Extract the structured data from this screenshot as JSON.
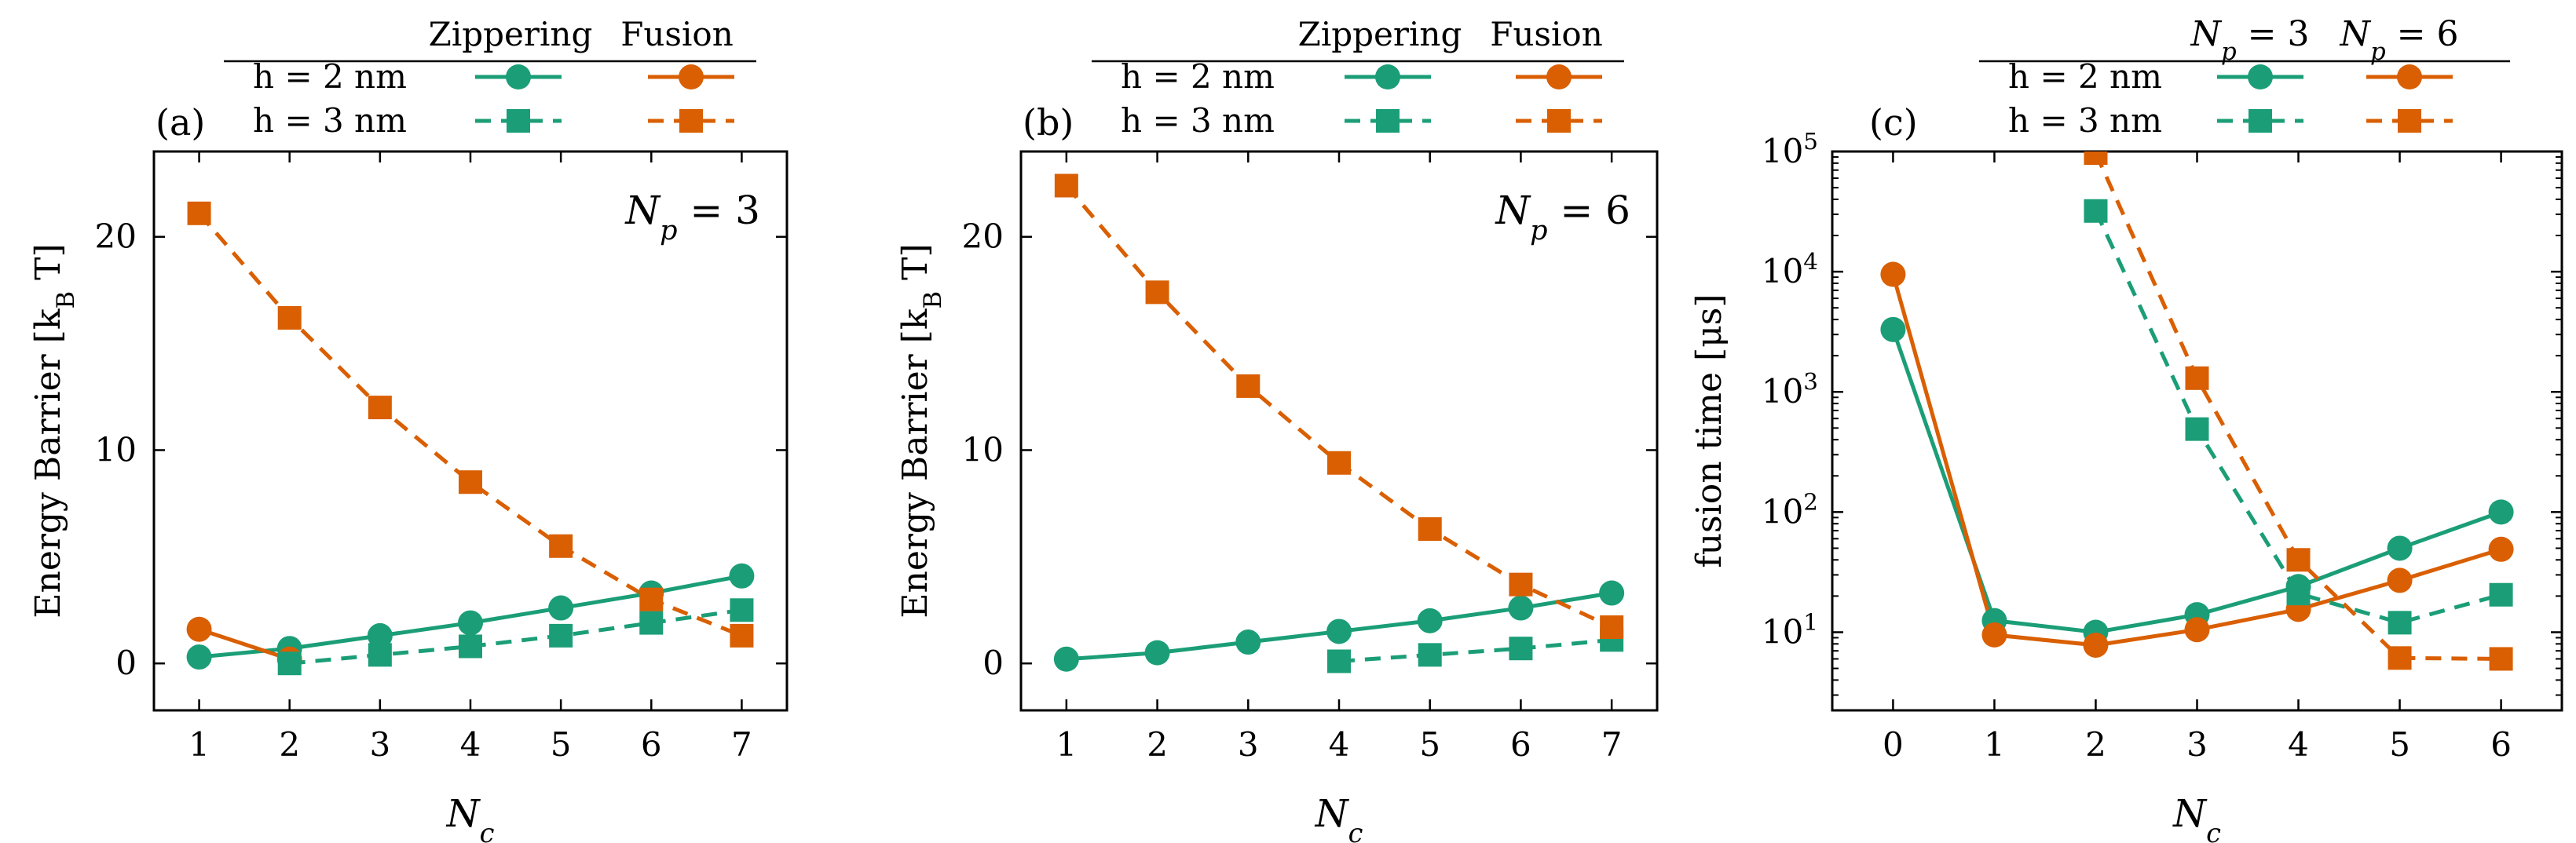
{
  "colors": {
    "green": "#1b9e77",
    "orange": "#d95f02"
  },
  "chart_data": [
    {
      "id": "a",
      "type": "line",
      "panel_label": "(a)",
      "annotation": "N_p = 3",
      "xlabel": "N_c",
      "ylabel": "Energy Barrier [k_B T]",
      "x_ticks": [
        1,
        2,
        3,
        4,
        5,
        6,
        7
      ],
      "y_ticks": [
        0,
        10,
        20
      ],
      "xlim": [
        0.5,
        7.5
      ],
      "ylim": [
        -2.2,
        24
      ],
      "yscale": "linear",
      "legend": {
        "col_headers": [
          "Zippering",
          "Fusion"
        ],
        "row_labels": [
          "h = 2 nm",
          "h = 3 nm"
        ]
      },
      "series": [
        {
          "name": "Zippering, h = 2 nm",
          "color": "green",
          "style": "solid",
          "marker": "circle",
          "points": [
            [
              1,
              0.3
            ],
            [
              2,
              0.7
            ],
            [
              3,
              1.3
            ],
            [
              4,
              1.9
            ],
            [
              5,
              2.6
            ],
            [
              6,
              3.3
            ],
            [
              7,
              4.1
            ]
          ]
        },
        {
          "name": "Fusion, h = 2 nm",
          "color": "orange",
          "style": "solid",
          "marker": "circle",
          "points": [
            [
              1,
              1.6
            ],
            [
              2,
              0.2
            ]
          ]
        },
        {
          "name": "Zippering, h = 3 nm",
          "color": "green",
          "style": "dashed",
          "marker": "square",
          "points": [
            [
              2,
              0.0
            ],
            [
              3,
              0.4
            ],
            [
              4,
              0.8
            ],
            [
              5,
              1.3
            ],
            [
              6,
              1.9
            ],
            [
              7,
              2.5
            ]
          ]
        },
        {
          "name": "Fusion, h = 3 nm",
          "color": "orange",
          "style": "dashed",
          "marker": "square",
          "points": [
            [
              1,
              21.1
            ],
            [
              2,
              16.2
            ],
            [
              3,
              12.0
            ],
            [
              4,
              8.5
            ],
            [
              5,
              5.5
            ],
            [
              6,
              3.0
            ],
            [
              7,
              1.3
            ]
          ]
        }
      ]
    },
    {
      "id": "b",
      "type": "line",
      "panel_label": "(b)",
      "annotation": "N_p = 6",
      "xlabel": "N_c",
      "ylabel": "Energy Barrier [k_B T]",
      "x_ticks": [
        1,
        2,
        3,
        4,
        5,
        6,
        7
      ],
      "y_ticks": [
        0,
        10,
        20
      ],
      "xlim": [
        0.5,
        7.5
      ],
      "ylim": [
        -2.2,
        24
      ],
      "yscale": "linear",
      "legend": {
        "col_headers": [
          "Zippering",
          "Fusion"
        ],
        "row_labels": [
          "h = 2 nm",
          "h = 3 nm"
        ]
      },
      "series": [
        {
          "name": "Zippering, h = 2 nm",
          "color": "green",
          "style": "solid",
          "marker": "circle",
          "points": [
            [
              1,
              0.2
            ],
            [
              2,
              0.5
            ],
            [
              3,
              1.0
            ],
            [
              4,
              1.5
            ],
            [
              5,
              2.0
            ],
            [
              6,
              2.6
            ],
            [
              7,
              3.3
            ]
          ]
        },
        {
          "name": "Zippering, h = 3 nm",
          "color": "green",
          "style": "dashed",
          "marker": "square",
          "points": [
            [
              4,
              0.1
            ],
            [
              5,
              0.4
            ],
            [
              6,
              0.7
            ],
            [
              7,
              1.1
            ]
          ]
        },
        {
          "name": "Fusion, h = 3 nm",
          "color": "orange",
          "style": "dashed",
          "marker": "square",
          "points": [
            [
              1,
              22.4
            ],
            [
              2,
              17.4
            ],
            [
              3,
              13.0
            ],
            [
              4,
              9.4
            ],
            [
              5,
              6.3
            ],
            [
              6,
              3.7
            ],
            [
              7,
              1.7
            ]
          ]
        }
      ]
    },
    {
      "id": "c",
      "type": "line",
      "panel_label": "(c)",
      "xlabel": "N_c",
      "ylabel": "fusion time [μs]",
      "x_ticks": [
        0,
        1,
        2,
        3,
        4,
        5,
        6
      ],
      "y_ticks": [
        1,
        2,
        3,
        4,
        5
      ],
      "xlim": [
        -0.6,
        6.6
      ],
      "ylim": [
        0.35,
        5.0
      ],
      "yscale": "log10",
      "legend": {
        "col_headers": [
          "N_p = 3",
          "N_p = 6"
        ],
        "row_labels": [
          "h = 2 nm",
          "h = 3 nm"
        ]
      },
      "series": [
        {
          "name": "N_p = 3, h = 2 nm",
          "color": "green",
          "style": "solid",
          "marker": "circle",
          "points": [
            [
              0,
              3300
            ],
            [
              1,
              12.5
            ],
            [
              2,
              10.0
            ],
            [
              3,
              14.0
            ],
            [
              4,
              24.0
            ],
            [
              5,
              50.0
            ],
            [
              6,
              100.0
            ]
          ]
        },
        {
          "name": "N_p = 6, h = 2 nm",
          "color": "orange",
          "style": "solid",
          "marker": "circle",
          "points": [
            [
              0,
              9500
            ],
            [
              1,
              9.5
            ],
            [
              2,
              7.8
            ],
            [
              3,
              10.5
            ],
            [
              4,
              15.5
            ],
            [
              5,
              27.0
            ],
            [
              6,
              49.0
            ]
          ]
        },
        {
          "name": "N_p = 3, h = 3 nm",
          "color": "green",
          "style": "dashed",
          "marker": "square",
          "points": [
            [
              2,
              32000
            ],
            [
              3,
              490
            ],
            [
              4,
              21.0
            ],
            [
              5,
              12.0
            ],
            [
              6,
              20.5
            ]
          ]
        },
        {
          "name": "N_p = 6, h = 3 nm",
          "color": "orange",
          "style": "dashed",
          "marker": "square",
          "points": [
            [
              2,
              97000
            ],
            [
              3,
              1300
            ],
            [
              4,
              40.0
            ],
            [
              5,
              6.1
            ],
            [
              6,
              6.0
            ]
          ]
        }
      ]
    }
  ]
}
